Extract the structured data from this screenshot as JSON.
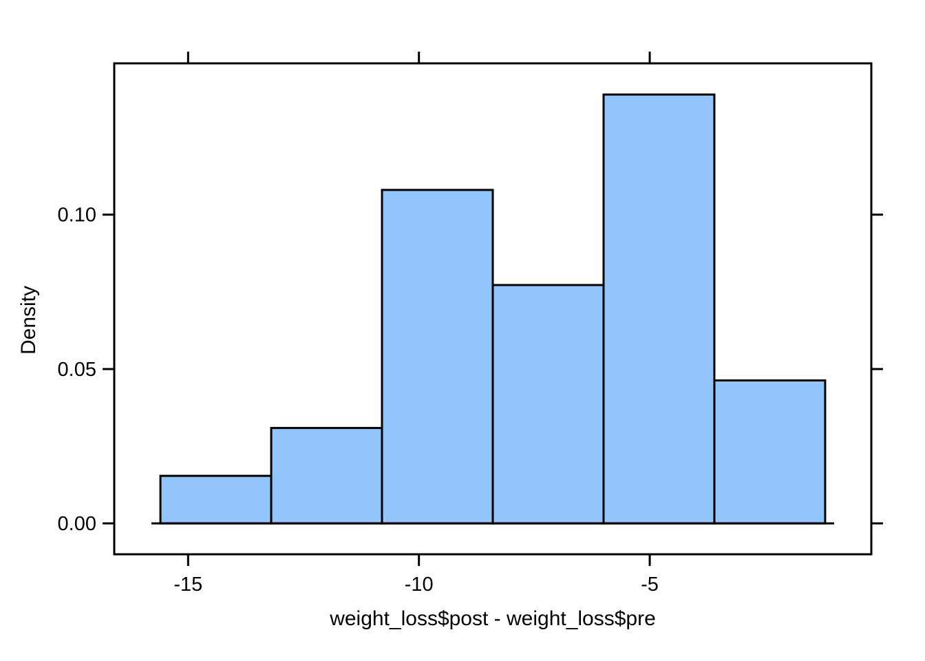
{
  "figure": {
    "background": "#ffffff",
    "text_color": "#000000"
  },
  "chart_data": {
    "type": "bar",
    "subtype": "histogram",
    "title": "",
    "xlabel": "weight_loss$post - weight_loss$pre",
    "ylabel": "Density",
    "breaks": [
      -15.6,
      -13.2,
      -10.8,
      -8.4,
      -6.0,
      -3.6,
      -1.2
    ],
    "bin_width": 2.4,
    "counts": [
      1,
      2,
      7,
      5,
      9,
      3
    ],
    "densities": [
      0.0154,
      0.0309,
      0.108,
      0.0772,
      0.1389,
      0.0463
    ],
    "x_ticks": {
      "values": [
        -15,
        -10,
        -5
      ],
      "labels": [
        "-15",
        "-10",
        "-5"
      ]
    },
    "y_ticks": {
      "values": [
        0.0,
        0.05,
        0.1
      ],
      "labels": [
        "0.00",
        "0.05",
        "0.10"
      ]
    },
    "xlim": [
      -16.6,
      -0.2
    ],
    "ylim": [
      -0.01,
      0.149
    ],
    "grid": false,
    "legend": null,
    "axis_sides": {
      "bottom": "labeled",
      "left": "labeled",
      "top": "ticks-only",
      "right": "ticks-only"
    },
    "colors": {
      "bar_fill": "#92C5FC",
      "bar_border": "#000000",
      "axis": "#000000"
    }
  }
}
